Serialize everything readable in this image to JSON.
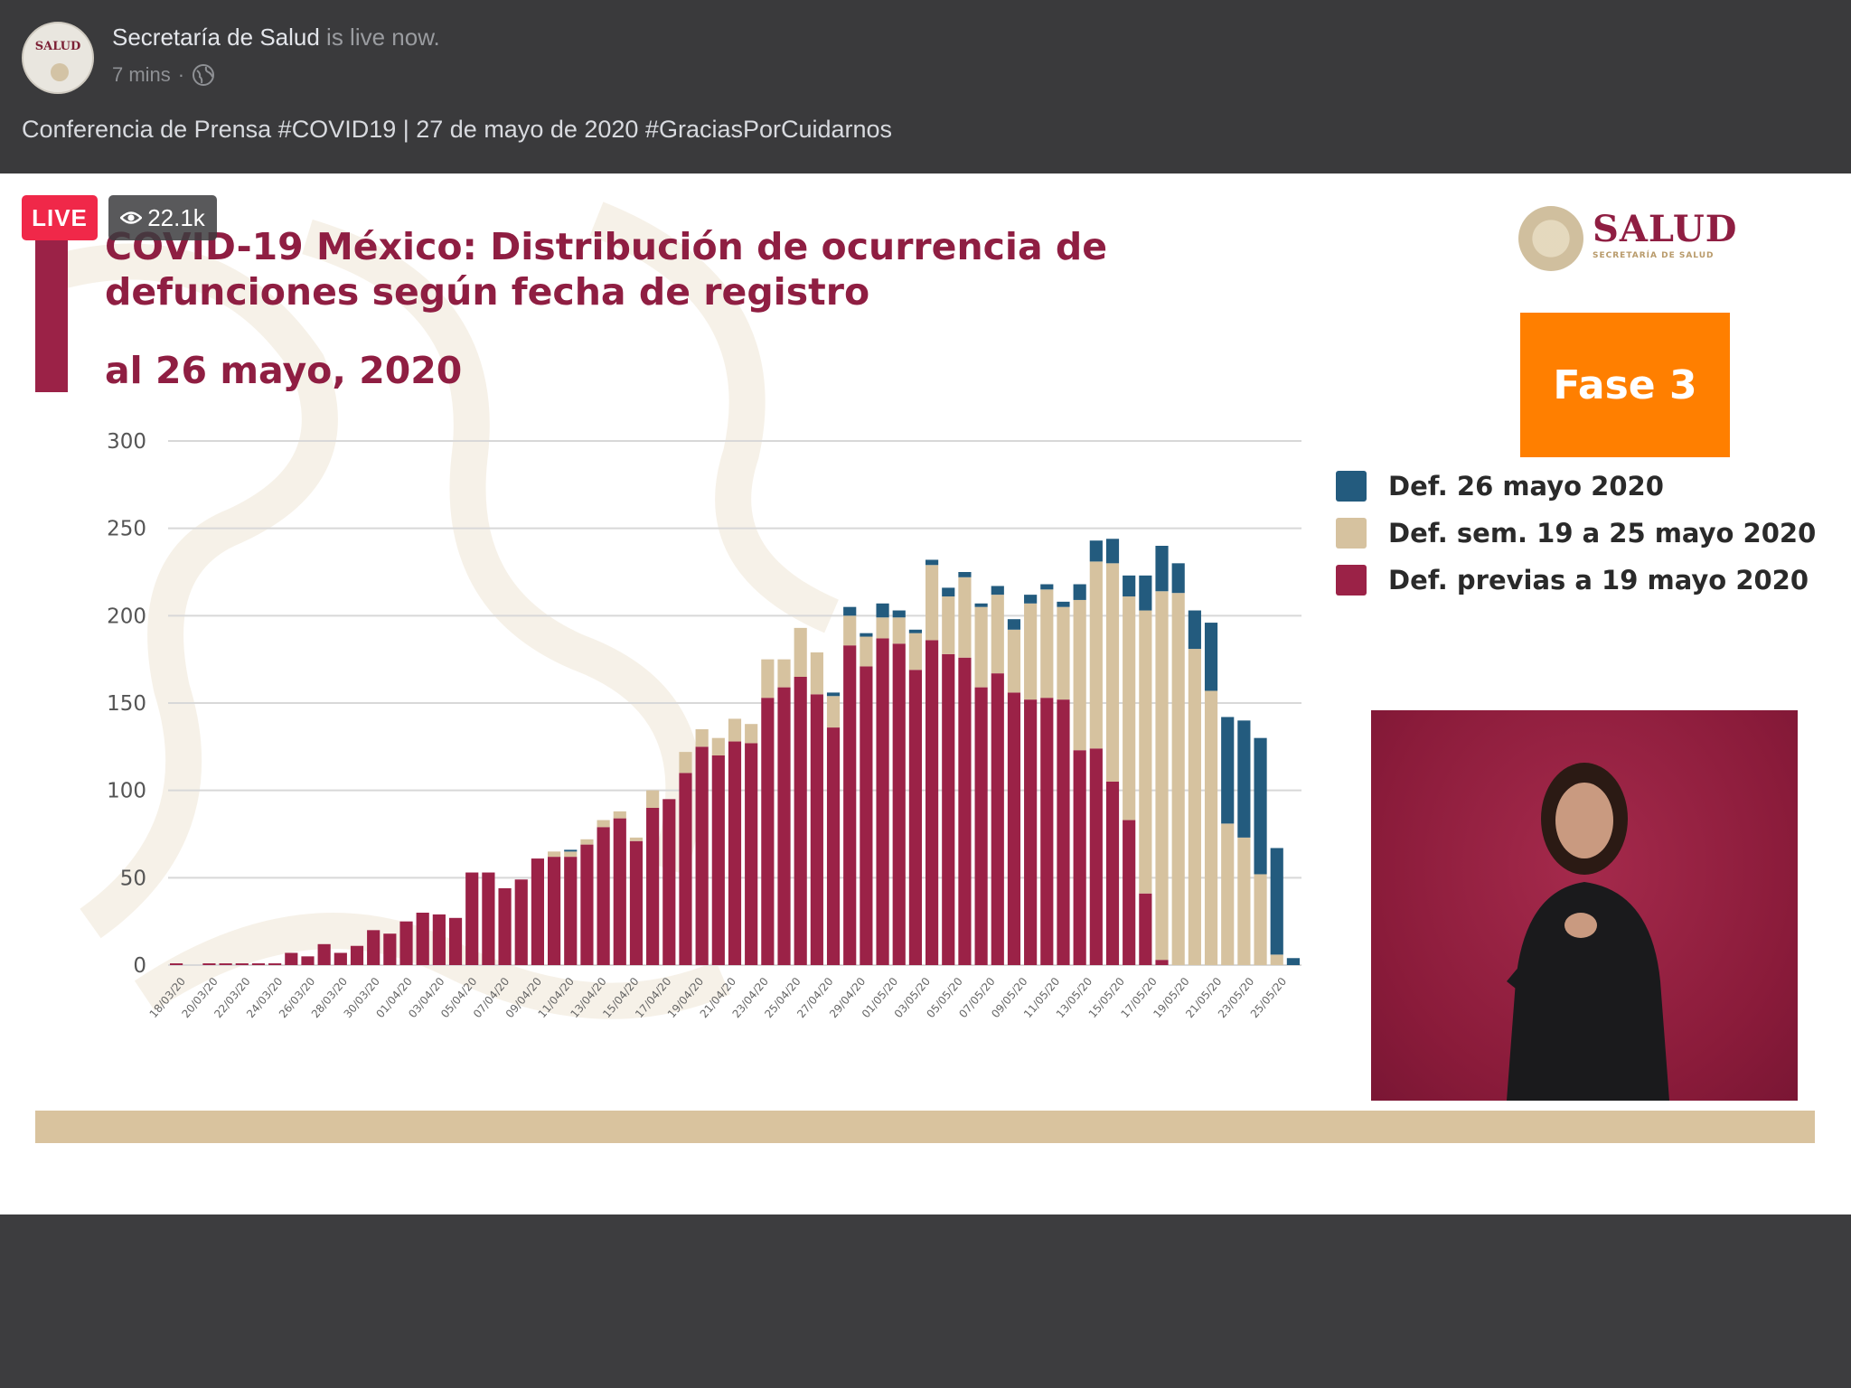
{
  "post": {
    "page_name": "Secretaría de Salud",
    "live_now": "is live now.",
    "time": "7 mins",
    "separator": "·",
    "caption": "Conferencia de Prensa #COVID19 | 27 de mayo de 2020 #GraciasPorCuidarnos",
    "avatar_text": "SALUD"
  },
  "video": {
    "live_label": "LIVE",
    "viewer_count": "22.1k"
  },
  "slide": {
    "title": "COVID-19 México: Distribución de ocurrencia de defunciones según fecha de registro",
    "subtitle": "al 26 mayo, 2020",
    "logo_text": "SALUD",
    "logo_subtext": "SECRETARÍA DE SALUD",
    "phase": "Fase 3"
  },
  "colors": {
    "previas": "#9b2247",
    "semana": "#d6c29f",
    "hoy": "#235b7e",
    "phase": "#ff7f00"
  },
  "chart_data": {
    "type": "bar",
    "stacked": true,
    "ylim": [
      0,
      300
    ],
    "yticks": [
      0,
      50,
      100,
      150,
      200,
      250,
      300
    ],
    "grid": true,
    "legend_position": "right",
    "x_tick_labels": [
      "18/03/20",
      "20/03/20",
      "22/03/20",
      "24/03/20",
      "26/03/20",
      "28/03/20",
      "30/03/20",
      "01/04/20",
      "03/04/20",
      "05/04/20",
      "07/04/20",
      "09/04/20",
      "11/04/20",
      "13/04/20",
      "15/04/20",
      "17/04/20",
      "19/04/20",
      "21/04/20",
      "23/04/20",
      "25/04/20",
      "27/04/20",
      "29/04/20",
      "01/05/20",
      "03/05/20",
      "05/05/20",
      "07/05/20",
      "09/05/20",
      "11/05/20",
      "13/05/20",
      "15/05/20",
      "17/05/20",
      "19/05/20",
      "21/05/20",
      "23/05/20",
      "25/05/20"
    ],
    "series": [
      {
        "name": "Def. previas a 19 mayo 2020",
        "color": "#9b2247",
        "values": [
          1,
          0,
          1,
          1,
          1,
          1,
          1,
          7,
          5,
          12,
          7,
          11,
          20,
          18,
          25,
          30,
          29,
          27,
          53,
          53,
          44,
          49,
          61,
          62,
          62,
          69,
          79,
          84,
          71,
          90,
          95,
          110,
          125,
          120,
          128,
          127,
          153,
          159,
          165,
          155,
          136,
          183,
          171,
          187,
          184,
          169,
          186,
          178,
          176,
          159,
          167,
          156,
          152,
          153,
          152,
          123,
          124,
          105,
          83,
          41,
          3,
          0,
          0,
          0,
          0,
          0,
          0,
          0,
          0
        ]
      },
      {
        "name": "Def. sem. 19 a 25 mayo 2020",
        "color": "#d6c29f",
        "values": [
          0,
          0,
          0,
          0,
          0,
          0,
          0,
          0,
          0,
          0,
          0,
          0,
          0,
          0,
          0,
          0,
          0,
          0,
          0,
          0,
          0,
          0,
          0,
          3,
          3,
          3,
          4,
          4,
          2,
          10,
          0,
          12,
          10,
          10,
          13,
          11,
          22,
          16,
          28,
          24,
          18,
          17,
          17,
          12,
          15,
          21,
          43,
          33,
          46,
          46,
          45,
          36,
          55,
          62,
          53,
          86,
          107,
          125,
          128,
          162,
          211,
          213,
          181,
          157,
          81,
          73,
          52,
          6,
          0
        ]
      },
      {
        "name": "Def. 26 mayo 2020",
        "color": "#235b7e",
        "values": [
          0,
          0,
          0,
          0,
          0,
          0,
          0,
          0,
          0,
          0,
          0,
          0,
          0,
          0,
          0,
          0,
          0,
          0,
          0,
          0,
          0,
          0,
          0,
          0,
          1,
          0,
          0,
          0,
          0,
          0,
          0,
          0,
          0,
          0,
          0,
          0,
          0,
          0,
          0,
          0,
          2,
          5,
          2,
          8,
          4,
          2,
          3,
          5,
          3,
          2,
          5,
          6,
          5,
          3,
          3,
          9,
          12,
          14,
          12,
          20,
          26,
          17,
          22,
          39,
          61,
          67,
          78,
          61,
          4
        ]
      }
    ]
  }
}
